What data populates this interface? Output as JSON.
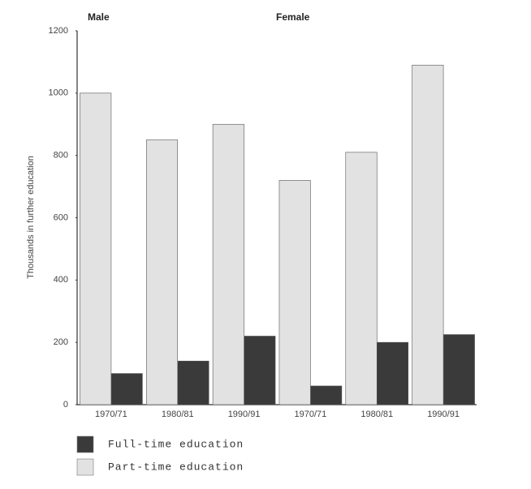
{
  "chart_data": {
    "type": "bar",
    "group_labels": [
      "Male",
      "Female"
    ],
    "y_label": "Thousands in further education",
    "categories": [
      "1970/71",
      "1980/81",
      "1990/91",
      "1970/71",
      "1980/81",
      "1990/91"
    ],
    "series": [
      {
        "name": "Full-time education",
        "color": "#3a3a3a",
        "values": [
          100,
          140,
          220,
          60,
          200,
          225
        ]
      },
      {
        "name": "Part-time education",
        "color": "#e2e2e2",
        "values": [
          1000,
          850,
          900,
          720,
          810,
          1090
        ]
      }
    ],
    "ylim": [
      0,
      1200
    ],
    "yticks": [
      0,
      200,
      400,
      600,
      800,
      1000,
      1200
    ],
    "grid": false
  }
}
